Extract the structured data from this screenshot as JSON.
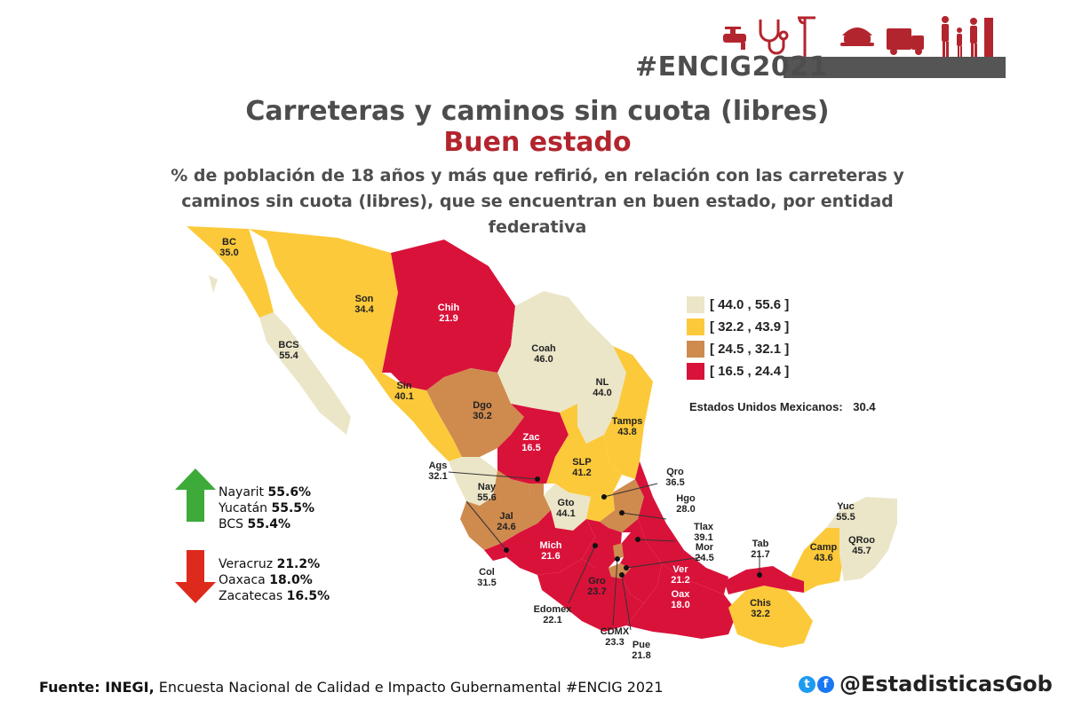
{
  "header": {
    "hashtag": "#ENCIG2021",
    "icons": [
      "water-tap-icon",
      "stethoscope-icon",
      "street-light-icon",
      "police-cap-icon",
      "garbage-truck-icon",
      "family-icon"
    ]
  },
  "title": "Carreteras y caminos sin cuota (libres)",
  "subtitle": "Buen estado",
  "description": "% de población de 18 años y más que refirió, en relación con las carreteras y caminos sin cuota (libres), que se encuentran en buen estado, por entidad federativa",
  "legend": [
    {
      "range": "[ 44.0 , 55.6 ]",
      "color": "#ebe6c8"
    },
    {
      "range": "[ 32.2 , 43.9 ]",
      "color": "#fcc93a"
    },
    {
      "range": "[ 24.5 , 32.1 ]",
      "color": "#cf8a4e"
    },
    {
      "range": "[ 16.5 , 24.4 ]",
      "color": "#d9123a"
    }
  ],
  "national": {
    "label": "Estados Unidos Mexicanos:",
    "value": "30.4"
  },
  "states": [
    {
      "abbr": "BC",
      "value": "35.0"
    },
    {
      "abbr": "Son",
      "value": "34.4"
    },
    {
      "abbr": "BCS",
      "value": "55.4"
    },
    {
      "abbr": "Chih",
      "value": "21.9"
    },
    {
      "abbr": "Coah",
      "value": "46.0"
    },
    {
      "abbr": "Sin",
      "value": "40.1"
    },
    {
      "abbr": "Dgo",
      "value": "30.2"
    },
    {
      "abbr": "NL",
      "value": "44.0"
    },
    {
      "abbr": "Tamps",
      "value": "43.8"
    },
    {
      "abbr": "Zac",
      "value": "16.5"
    },
    {
      "abbr": "SLP",
      "value": "41.2"
    },
    {
      "abbr": "Ags",
      "value": "32.1"
    },
    {
      "abbr": "Nay",
      "value": "55.6"
    },
    {
      "abbr": "Gto",
      "value": "44.1"
    },
    {
      "abbr": "Qro",
      "value": "36.5"
    },
    {
      "abbr": "Hgo",
      "value": "28.0"
    },
    {
      "abbr": "Jal",
      "value": "24.6"
    },
    {
      "abbr": "Tlax",
      "value": "39.1"
    },
    {
      "abbr": "Mich",
      "value": "21.6"
    },
    {
      "abbr": "Mor",
      "value": "24.5"
    },
    {
      "abbr": "Col",
      "value": "31.5"
    },
    {
      "abbr": "Gro",
      "value": "23.7"
    },
    {
      "abbr": "Edomex",
      "value": "22.1"
    },
    {
      "abbr": "CDMX",
      "value": "23.3"
    },
    {
      "abbr": "Pue",
      "value": "21.8"
    },
    {
      "abbr": "Ver",
      "value": "21.2"
    },
    {
      "abbr": "Oax",
      "value": "18.0"
    },
    {
      "abbr": "Tab",
      "value": "21.7"
    },
    {
      "abbr": "Chis",
      "value": "32.2"
    },
    {
      "abbr": "Camp",
      "value": "43.6"
    },
    {
      "abbr": "Yuc",
      "value": "55.5"
    },
    {
      "abbr": "QRoo",
      "value": "45.7"
    }
  ],
  "top": {
    "items": [
      {
        "name": "Nayarit",
        "value": "55.6%"
      },
      {
        "name": "Yucatán",
        "value": "55.5%"
      },
      {
        "name": "BCS",
        "value": "55.4%"
      }
    ]
  },
  "bottom": {
    "items": [
      {
        "name": "Veracruz",
        "value": "21.2%"
      },
      {
        "name": "Oaxaca",
        "value": "18.0%"
      },
      {
        "name": "Zacatecas",
        "value": "16.5%"
      }
    ]
  },
  "footer": {
    "source_label": "Fuente: INEGI,",
    "source_text": "Encuesta Nacional de Calidad e Impacto Gubernamental #ENCIG 2021",
    "handle": "@EstadisticasGob"
  }
}
